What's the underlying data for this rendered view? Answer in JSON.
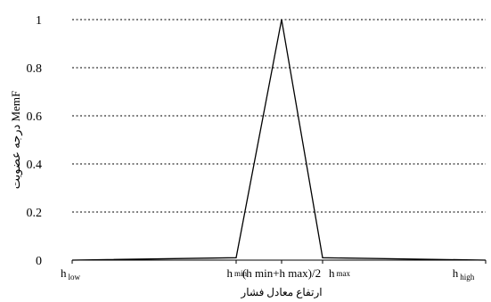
{
  "chart_data": {
    "type": "line",
    "ylabel": "درجه عضویت MemF",
    "xlabel": "ارتفاع معادل فشار",
    "ylim": [
      0,
      1
    ],
    "yticks": [
      "0",
      "0.2",
      "0.4",
      "0.6",
      "0.8",
      "1"
    ],
    "grid": "horizontal dotted",
    "categories": [
      {
        "base": "h",
        "sub": "low"
      },
      {
        "base": "h",
        "sub": "min"
      },
      {
        "text": "(h min+h max)/2"
      },
      {
        "base": "h",
        "sub": "max"
      },
      {
        "base": "h",
        "sub": "high"
      }
    ],
    "series": [
      {
        "values": [
          0,
          0.01,
          1,
          0.01,
          0
        ]
      }
    ]
  }
}
